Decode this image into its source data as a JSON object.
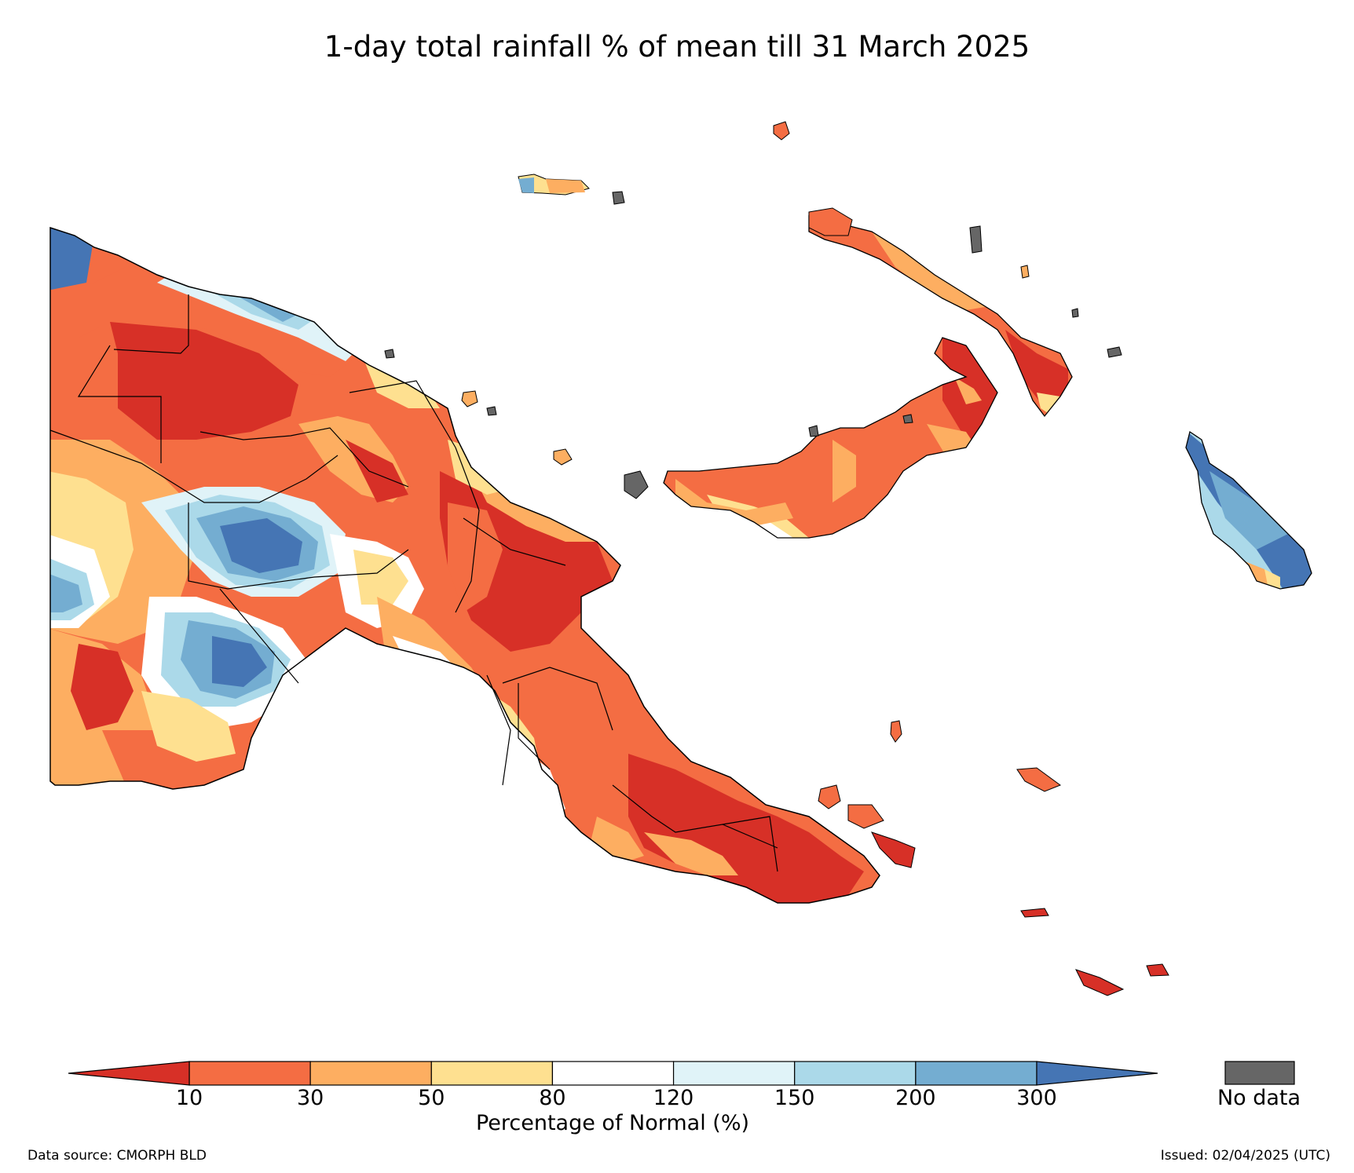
{
  "title": "1-day total rainfall % of mean till 31 March 2025",
  "legend": {
    "ticks": [
      "10",
      "30",
      "50",
      "80",
      "120",
      "150",
      "200",
      "300"
    ],
    "title": "Percentage of Normal (%)",
    "colors": [
      "#d73027",
      "#f46d43",
      "#fdae61",
      "#fee090",
      "#ffffff",
      "#e0f3f8",
      "#abd9e9",
      "#74add1",
      "#4575b4"
    ],
    "no_data_label": "No data",
    "no_data_color": "#666666"
  },
  "footer": {
    "source": "Data source: CMORPH BLD",
    "issued": "Issued: 02/04/2025 (UTC)"
  },
  "map": {
    "region": "Papua New Guinea",
    "variable": "rainfall percentage of normal",
    "color_scale": "diverging red-white-blue"
  }
}
